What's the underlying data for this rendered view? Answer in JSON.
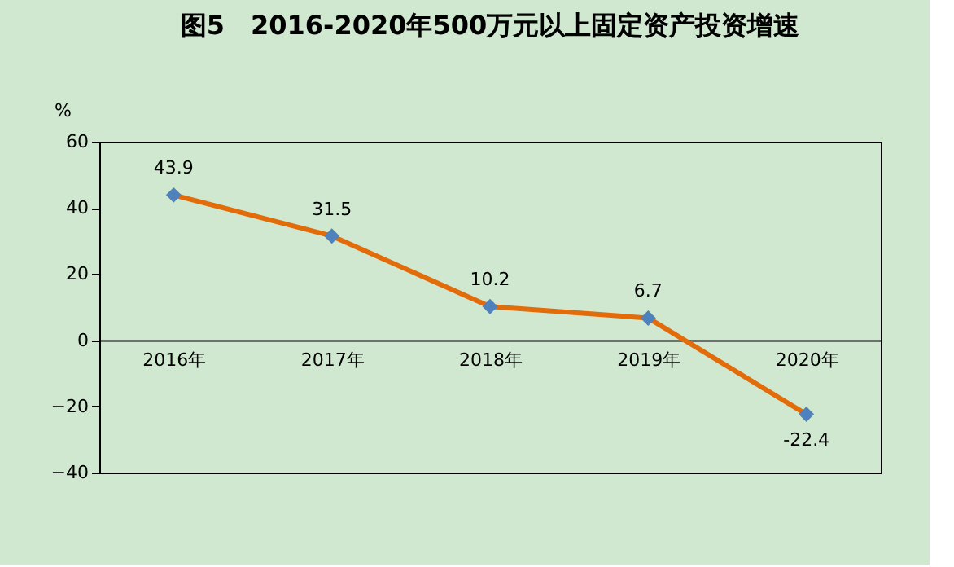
{
  "chart_data": {
    "type": "line",
    "title": "图5　2016-2020年500万元以上固定资产投资增速",
    "ylabel": "%",
    "categories": [
      "2016年",
      "2017年",
      "2018年",
      "2019年",
      "2020年"
    ],
    "series": [
      {
        "color": "#e36c0a",
        "values": [
          43.9,
          31.5,
          10.2,
          6.7,
          -22.4
        ]
      }
    ],
    "marker": "diamond",
    "line_style": "solid",
    "ylim": [
      -40,
      60
    ],
    "yticks": [
      -40,
      -20,
      0,
      20,
      40,
      60
    ],
    "grid": false,
    "legend": false,
    "data_labels": true
  }
}
